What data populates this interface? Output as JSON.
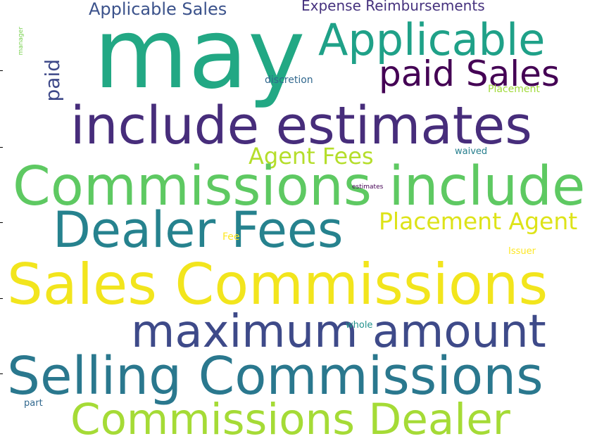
{
  "words": [
    {
      "text": "may",
      "color": "#22a884"
    },
    {
      "text": "Applicable Sales",
      "color": "#3b528b"
    },
    {
      "text": "Expense Reimbursements",
      "color": "#46327e"
    },
    {
      "text": "Applicable",
      "color": "#1fa188"
    },
    {
      "text": "paid Sales",
      "color": "#440154"
    },
    {
      "text": "paid",
      "color": "#3e4989"
    },
    {
      "text": "manager",
      "color": "#7ad151"
    },
    {
      "text": "discretion",
      "color": "#31688e"
    },
    {
      "text": "Placement",
      "color": "#a0da39"
    },
    {
      "text": "include estimates",
      "color": "#472d7b"
    },
    {
      "text": "Agent Fees",
      "color": "#b5de2b"
    },
    {
      "text": "waived",
      "color": "#277f8e"
    },
    {
      "text": "Commissions include",
      "color": "#5ec962"
    },
    {
      "text": "estimates",
      "color": "#440154"
    },
    {
      "text": "Dealer Fees",
      "color": "#26828e"
    },
    {
      "text": "Placement Agent",
      "color": "#dde318"
    },
    {
      "text": "Fee",
      "color": "#fde725"
    },
    {
      "text": "Issuer",
      "color": "#fde725"
    },
    {
      "text": "Sales Commissions",
      "color": "#f2e51d"
    },
    {
      "text": "maximum amount",
      "color": "#3e4a89"
    },
    {
      "text": "whole",
      "color": "#21918c"
    },
    {
      "text": "Selling Commissions",
      "color": "#2a788e"
    },
    {
      "text": "part",
      "color": "#31688e"
    },
    {
      "text": "Commissions Dealer",
      "color": "#a5db36"
    }
  ]
}
